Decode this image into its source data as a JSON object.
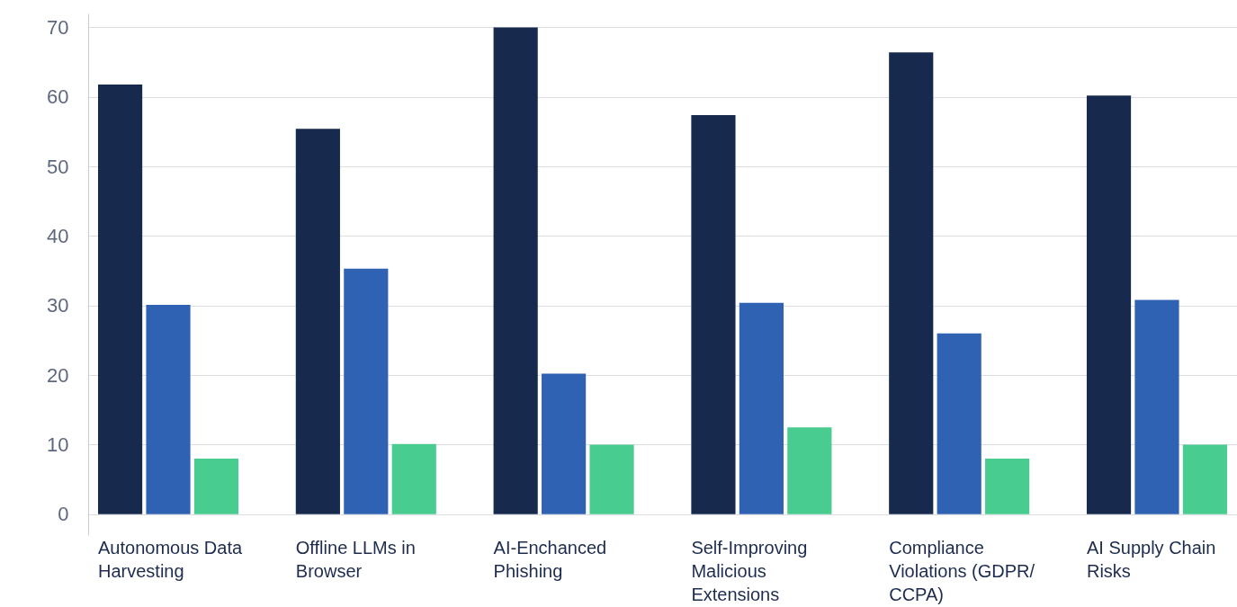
{
  "chart_data": {
    "type": "bar",
    "categories": [
      "Autonomous Data Harvesting",
      "Offline LLMs in Browser",
      "AI-Enchanced Phishing",
      "Self-Improving Malicious Extensions",
      "Compliance Violations (GDPR/ CCPA)",
      "AI Supply Chain Risks"
    ],
    "series": [
      {
        "color": "#172a4d",
        "values": [
          61.8,
          55.4,
          70,
          57.4,
          66.4,
          60.2
        ]
      },
      {
        "color": "#2f62b3",
        "values": [
          30.1,
          35.3,
          20.2,
          30.4,
          26,
          30.8
        ]
      },
      {
        "color": "#48cc90",
        "values": [
          8,
          10.1,
          10,
          12.5,
          8,
          10
        ]
      }
    ],
    "ylim": [
      -3,
      72
    ],
    "yticks": [
      0,
      10,
      20,
      30,
      40,
      50,
      60,
      70
    ],
    "grid": "y"
  }
}
